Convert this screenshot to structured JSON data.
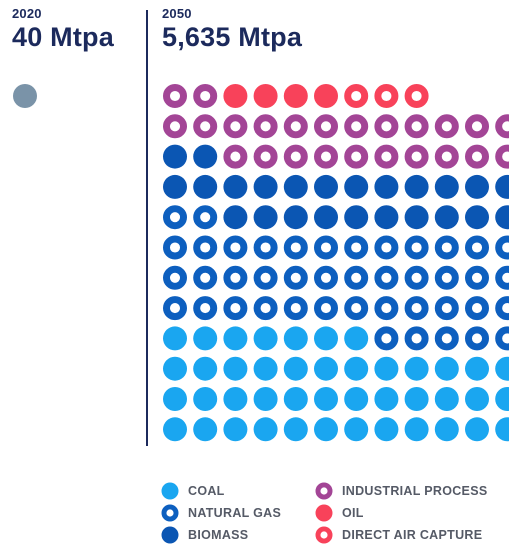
{
  "panels": [
    {
      "year": "2020",
      "value": "40 Mtpa"
    },
    {
      "year": "2050",
      "value": "5,635 Mtpa"
    }
  ],
  "colors": {
    "coal": "#1aa6f0",
    "natural_gas": "#0d5fbf",
    "biomass": "#0b56b3",
    "industrial_process": "#a34596",
    "oil": "#f8425a",
    "direct_air_capture": "#f8425a",
    "year_2020_dot": "#7a93a8",
    "divider": "#1c2a5c"
  },
  "legend": [
    {
      "key": "coal",
      "label": "COAL",
      "style": "solid",
      "icon": "solid-circle-icon"
    },
    {
      "key": "natural_gas",
      "label": "NATURAL GAS",
      "style": "ring",
      "icon": "ring-circle-icon"
    },
    {
      "key": "biomass",
      "label": "BIOMASS",
      "style": "solid",
      "icon": "solid-circle-icon"
    },
    {
      "key": "industrial_process",
      "label": "INDUSTRIAL PROCESS",
      "style": "ring",
      "icon": "ring-circle-icon"
    },
    {
      "key": "oil",
      "label": "OIL",
      "style": "solid",
      "icon": "solid-circle-icon"
    },
    {
      "key": "direct_air_capture",
      "label": "DIRECT AIR CAPTURE",
      "style": "ring",
      "icon": "ring-circle-icon"
    }
  ],
  "chart_data": {
    "type": "waffle",
    "unit": "Mtpa",
    "panels": [
      {
        "year": "2020",
        "total": 40,
        "dots": [
          {
            "category": "unspecified",
            "count": 1
          }
        ]
      },
      {
        "year": "2050",
        "total": 5635,
        "rows": [
          [
            "industrial_process",
            "industrial_process",
            "oil",
            "oil",
            "oil",
            "oil",
            "direct_air_capture",
            "direct_air_capture",
            "direct_air_capture"
          ],
          [
            "industrial_process",
            "industrial_process",
            "industrial_process",
            "industrial_process",
            "industrial_process",
            "industrial_process",
            "industrial_process",
            "industrial_process",
            "industrial_process",
            "industrial_process",
            "industrial_process",
            "industrial_process"
          ],
          [
            "biomass",
            "biomass",
            "industrial_process",
            "industrial_process",
            "industrial_process",
            "industrial_process",
            "industrial_process",
            "industrial_process",
            "industrial_process",
            "industrial_process",
            "industrial_process",
            "industrial_process"
          ],
          [
            "biomass",
            "biomass",
            "biomass",
            "biomass",
            "biomass",
            "biomass",
            "biomass",
            "biomass",
            "biomass",
            "biomass",
            "biomass",
            "biomass"
          ],
          [
            "natural_gas",
            "natural_gas",
            "biomass",
            "biomass",
            "biomass",
            "biomass",
            "biomass",
            "biomass",
            "biomass",
            "biomass",
            "biomass",
            "biomass"
          ],
          [
            "natural_gas",
            "natural_gas",
            "natural_gas",
            "natural_gas",
            "natural_gas",
            "natural_gas",
            "natural_gas",
            "natural_gas",
            "natural_gas",
            "natural_gas",
            "natural_gas",
            "natural_gas"
          ],
          [
            "natural_gas",
            "natural_gas",
            "natural_gas",
            "natural_gas",
            "natural_gas",
            "natural_gas",
            "natural_gas",
            "natural_gas",
            "natural_gas",
            "natural_gas",
            "natural_gas",
            "natural_gas"
          ],
          [
            "natural_gas",
            "natural_gas",
            "natural_gas",
            "natural_gas",
            "natural_gas",
            "natural_gas",
            "natural_gas",
            "natural_gas",
            "natural_gas",
            "natural_gas",
            "natural_gas",
            "natural_gas"
          ],
          [
            "coal",
            "coal",
            "coal",
            "coal",
            "coal",
            "coal",
            "coal",
            "natural_gas",
            "natural_gas",
            "natural_gas",
            "natural_gas",
            "natural_gas"
          ],
          [
            "coal",
            "coal",
            "coal",
            "coal",
            "coal",
            "coal",
            "coal",
            "coal",
            "coal",
            "coal",
            "coal",
            "coal"
          ],
          [
            "coal",
            "coal",
            "coal",
            "coal",
            "coal",
            "coal",
            "coal",
            "coal",
            "coal",
            "coal",
            "coal",
            "coal"
          ],
          [
            "coal",
            "coal",
            "coal",
            "coal",
            "coal",
            "coal",
            "coal",
            "coal",
            "coal",
            "coal",
            "coal",
            "coal"
          ]
        ]
      }
    ]
  }
}
